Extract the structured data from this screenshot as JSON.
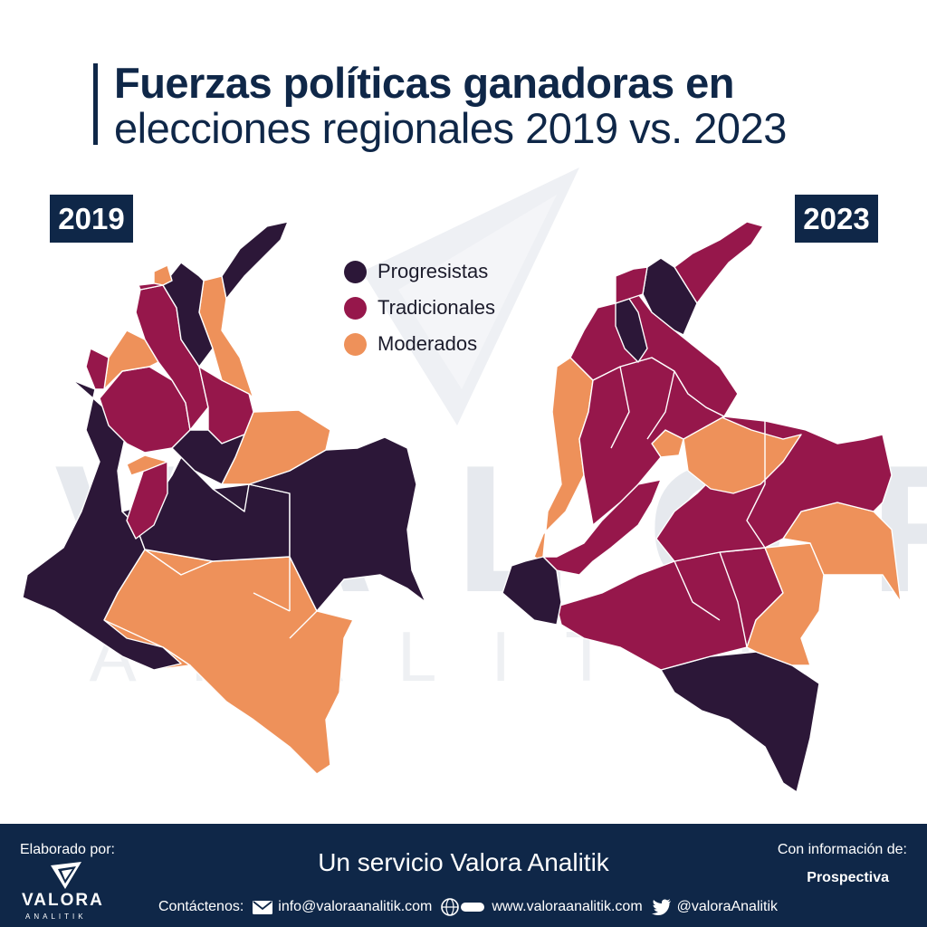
{
  "title": {
    "line1": "Fuerzas políticas ganadoras en",
    "line2": "elecciones regionales 2019 vs. 2023"
  },
  "maps": [
    {
      "year": "2019"
    },
    {
      "year": "2023"
    }
  ],
  "legend": [
    {
      "label": "Progresistas",
      "color": "#2c1738"
    },
    {
      "label": "Tradicionales",
      "color": "#96174b"
    },
    {
      "label": "Moderados",
      "color": "#ee915a"
    }
  ],
  "watermark": {
    "word": "VALORA",
    "sub": "ANALITIK"
  },
  "footer": {
    "made_by": "Elaborado por:",
    "logo_word": "VALORA",
    "logo_sub": "ANALITIK",
    "service": "Un servicio Valora Analitik",
    "info_label": "Con información de:",
    "source": "Prospectiva",
    "contact_label": "Contáctenos:",
    "email": "info@valoraanalitik.com",
    "website": "www.valoraanalitik.com",
    "twitter": "@valoraAnalitik"
  },
  "colors": {
    "navy": "#0f2748",
    "progresistas": "#2c1738",
    "tradicionales": "#96174b",
    "moderados": "#ee915a"
  },
  "icons": {
    "logo": "valora-logo-icon",
    "email": "envelope-icon",
    "web": "globe-icon",
    "twitter": "twitter-bird-icon"
  }
}
